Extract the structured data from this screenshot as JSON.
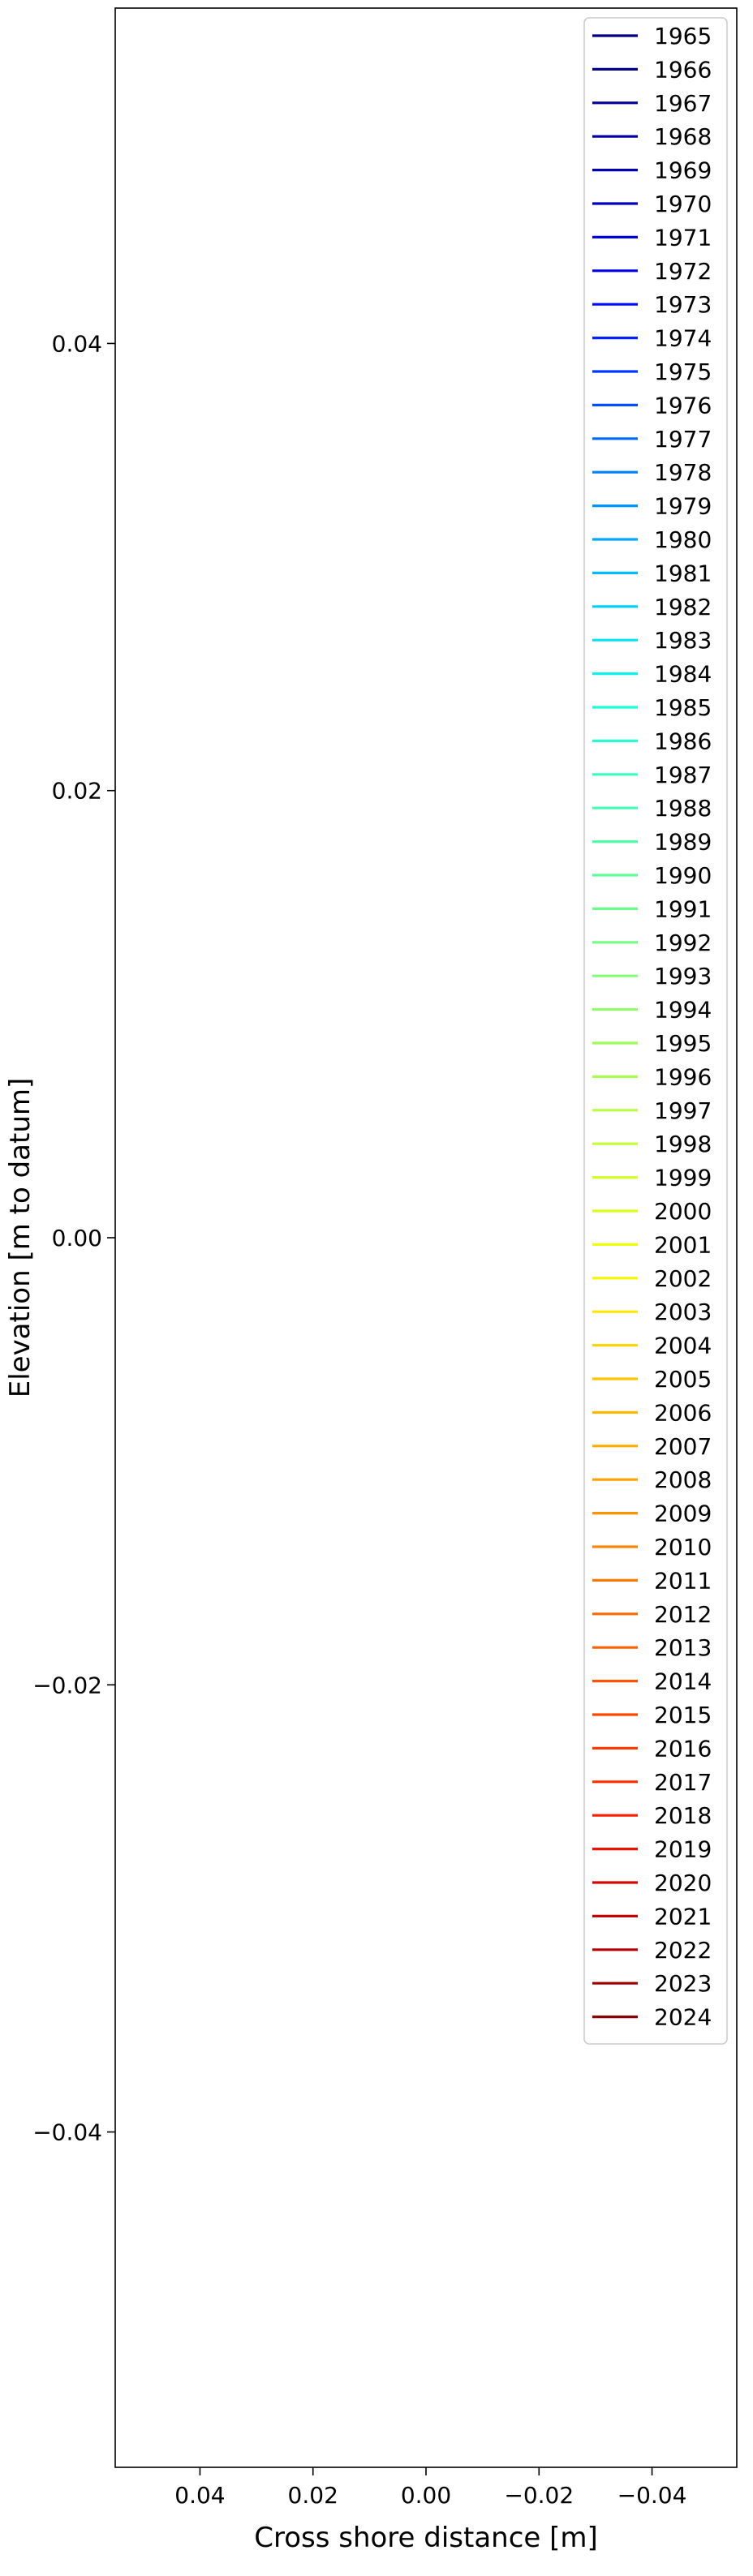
{
  "chart_data": {
    "type": "line",
    "title": "",
    "xlabel": "Cross shore distance [m]",
    "ylabel": "Elevation [m to datum]",
    "xlim": [
      0.055,
      -0.055
    ],
    "ylim": [
      -0.055,
      0.055
    ],
    "x_inverted": true,
    "x_ticks": [
      0.04,
      0.02,
      0.0,
      -0.02,
      -0.04
    ],
    "x_tick_labels": [
      "0.04",
      "0.02",
      "0.00",
      "−0.02",
      "−0.04"
    ],
    "y_ticks": [
      0.04,
      0.02,
      0.0,
      -0.02,
      -0.04
    ],
    "y_tick_labels": [
      "0.04",
      "0.02",
      "0.00",
      "−0.02",
      "−0.04"
    ],
    "grid": false,
    "legend_position": "top-right",
    "colormap": "jet",
    "series": [
      {
        "name": "1965",
        "color": "#00007f",
        "x": [],
        "y": []
      },
      {
        "name": "1966",
        "color": "#00008a",
        "x": [],
        "y": []
      },
      {
        "name": "1967",
        "color": "#000096",
        "x": [],
        "y": []
      },
      {
        "name": "1968",
        "color": "#0000a1",
        "x": [],
        "y": []
      },
      {
        "name": "1969",
        "color": "#0000ad",
        "x": [],
        "y": []
      },
      {
        "name": "1970",
        "color": "#0000c4",
        "x": [],
        "y": []
      },
      {
        "name": "1971",
        "color": "#0000d6",
        "x": [],
        "y": []
      },
      {
        "name": "1972",
        "color": "#0000e8",
        "x": [],
        "y": []
      },
      {
        "name": "1973",
        "color": "#0008ff",
        "x": [],
        "y": []
      },
      {
        "name": "1974",
        "color": "#0020ff",
        "x": [],
        "y": []
      },
      {
        "name": "1975",
        "color": "#0038ff",
        "x": [],
        "y": []
      },
      {
        "name": "1976",
        "color": "#0050ff",
        "x": [],
        "y": []
      },
      {
        "name": "1977",
        "color": "#0068ff",
        "x": [],
        "y": []
      },
      {
        "name": "1978",
        "color": "#0080ff",
        "x": [],
        "y": []
      },
      {
        "name": "1979",
        "color": "#0094ff",
        "x": [],
        "y": []
      },
      {
        "name": "1980",
        "color": "#00a8ff",
        "x": [],
        "y": []
      },
      {
        "name": "1981",
        "color": "#00bcff",
        "x": [],
        "y": []
      },
      {
        "name": "1982",
        "color": "#00d0ff",
        "x": [],
        "y": []
      },
      {
        "name": "1983",
        "color": "#00e4f8",
        "x": [],
        "y": []
      },
      {
        "name": "1984",
        "color": "#0cf4eb",
        "x": [],
        "y": []
      },
      {
        "name": "1985",
        "color": "#1fffd7",
        "x": [],
        "y": []
      },
      {
        "name": "1986",
        "color": "#29ffce",
        "x": [],
        "y": []
      },
      {
        "name": "1987",
        "color": "#36ffc1",
        "x": [],
        "y": []
      },
      {
        "name": "1988",
        "color": "#43ffb4",
        "x": [],
        "y": []
      },
      {
        "name": "1989",
        "color": "#50ffa7",
        "x": [],
        "y": []
      },
      {
        "name": "1990",
        "color": "#5cff9a",
        "x": [],
        "y": []
      },
      {
        "name": "1991",
        "color": "#69ff8d",
        "x": [],
        "y": []
      },
      {
        "name": "1992",
        "color": "#76ff80",
        "x": [],
        "y": []
      },
      {
        "name": "1993",
        "color": "#83ff73",
        "x": [],
        "y": []
      },
      {
        "name": "1994",
        "color": "#90ff66",
        "x": [],
        "y": []
      },
      {
        "name": "1995",
        "color": "#9dff59",
        "x": [],
        "y": []
      },
      {
        "name": "1996",
        "color": "#aaff4d",
        "x": [],
        "y": []
      },
      {
        "name": "1997",
        "color": "#b7ff40",
        "x": [],
        "y": []
      },
      {
        "name": "1998",
        "color": "#c4ff33",
        "x": [],
        "y": []
      },
      {
        "name": "1999",
        "color": "#d1ff26",
        "x": [],
        "y": []
      },
      {
        "name": "2000",
        "color": "#deff19",
        "x": [],
        "y": []
      },
      {
        "name": "2001",
        "color": "#ebff0c",
        "x": [],
        "y": []
      },
      {
        "name": "2002",
        "color": "#f8f500",
        "x": [],
        "y": []
      },
      {
        "name": "2003",
        "color": "#ffe500",
        "x": [],
        "y": []
      },
      {
        "name": "2004",
        "color": "#ffd500",
        "x": [],
        "y": []
      },
      {
        "name": "2005",
        "color": "#ffc400",
        "x": [],
        "y": []
      },
      {
        "name": "2006",
        "color": "#ffb800",
        "x": [],
        "y": []
      },
      {
        "name": "2007",
        "color": "#ffab00",
        "x": [],
        "y": []
      },
      {
        "name": "2008",
        "color": "#ff9f00",
        "x": [],
        "y": []
      },
      {
        "name": "2009",
        "color": "#ff9200",
        "x": [],
        "y": []
      },
      {
        "name": "2010",
        "color": "#ff8600",
        "x": [],
        "y": []
      },
      {
        "name": "2011",
        "color": "#ff7900",
        "x": [],
        "y": []
      },
      {
        "name": "2012",
        "color": "#ff6c00",
        "x": [],
        "y": []
      },
      {
        "name": "2013",
        "color": "#ff6000",
        "x": [],
        "y": []
      },
      {
        "name": "2014",
        "color": "#ff5300",
        "x": [],
        "y": []
      },
      {
        "name": "2015",
        "color": "#ff4600",
        "x": [],
        "y": []
      },
      {
        "name": "2016",
        "color": "#ff3a00",
        "x": [],
        "y": []
      },
      {
        "name": "2017",
        "color": "#ff2d00",
        "x": [],
        "y": []
      },
      {
        "name": "2018",
        "color": "#f91f00",
        "x": [],
        "y": []
      },
      {
        "name": "2019",
        "color": "#e81300",
        "x": [],
        "y": []
      },
      {
        "name": "2020",
        "color": "#d60700",
        "x": [],
        "y": []
      },
      {
        "name": "2021",
        "color": "#c40000",
        "x": [],
        "y": []
      },
      {
        "name": "2022",
        "color": "#b30000",
        "x": [],
        "y": []
      },
      {
        "name": "2023",
        "color": "#a10000",
        "x": [],
        "y": []
      },
      {
        "name": "2024",
        "color": "#8f0000",
        "x": [],
        "y": []
      }
    ]
  }
}
